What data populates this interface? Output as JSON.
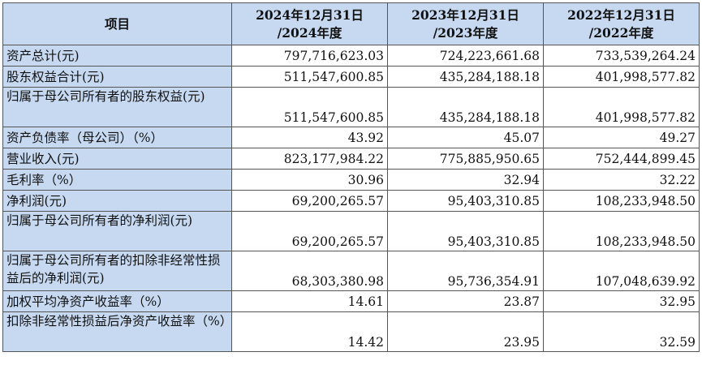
{
  "table": {
    "headers": [
      {
        "line1": "项目",
        "line2": ""
      },
      {
        "line1": "2024年12月31日",
        "line2": "/2024年度"
      },
      {
        "line1": "2023年12月31日",
        "line2": "/2023年度"
      },
      {
        "line1": "2022年12月31日",
        "line2": "/2022年度"
      }
    ],
    "rows": [
      {
        "label": "资产总计(元)",
        "values": [
          "797,716,623.03",
          "724,223,661.68",
          "733,539,264.24"
        ]
      },
      {
        "label": "股东权益合计(元)",
        "values": [
          "511,547,600.85",
          "435,284,188.18",
          "401,998,577.82"
        ]
      },
      {
        "label": "归属于母公司所有者的股东权益(元)",
        "values": [
          "511,547,600.85",
          "435,284,188.18",
          "401,998,577.82"
        ]
      },
      {
        "label": "资产负债率（母公司）（%）",
        "values": [
          "43.92",
          "45.07",
          "49.27"
        ]
      },
      {
        "label": "营业收入(元)",
        "values": [
          "823,177,984.22",
          "775,885,950.65",
          "752,444,899.45"
        ]
      },
      {
        "label": "毛利率（%）",
        "values": [
          "30.96",
          "32.94",
          "32.22"
        ]
      },
      {
        "label": "净利润(元)",
        "values": [
          "69,200,265.57",
          "95,403,310.85",
          "108,233,948.50"
        ]
      },
      {
        "label": "归属于母公司所有者的净利润(元)",
        "values": [
          "69,200,265.57",
          "95,403,310.85",
          "108,233,948.50"
        ]
      },
      {
        "label": "归属于母公司所有者的扣除非经常性损益后的净利润(元)",
        "values": [
          "68,303,380.98",
          "95,736,354.91",
          "107,048,639.92"
        ]
      },
      {
        "label": "加权平均净资产收益率（%）",
        "values": [
          "14.61",
          "23.87",
          "32.95"
        ]
      },
      {
        "label": "扣除非经常性损益后净资产收益率（%）",
        "values": [
          "14.42",
          "23.95",
          "32.59"
        ]
      }
    ]
  }
}
